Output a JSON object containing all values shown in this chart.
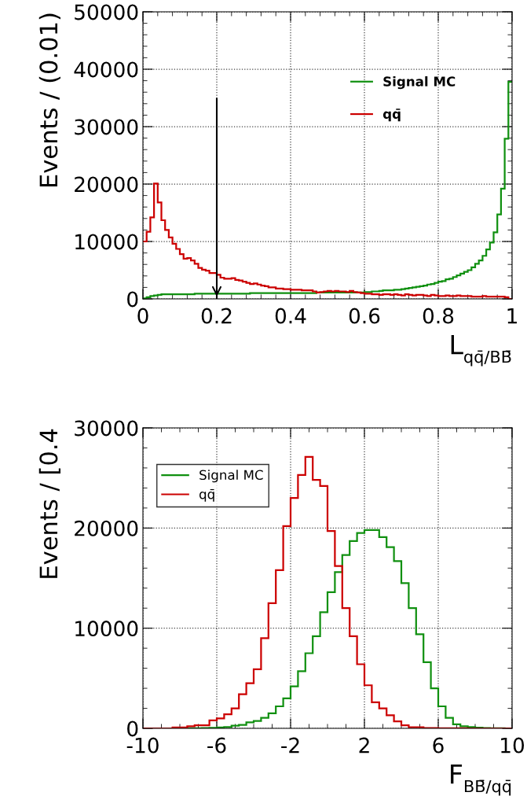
{
  "chart_data": [
    {
      "type": "histogram",
      "ylabel": "Events / (0.01)",
      "xlabel": "L$_{qq̄/BB̄}$",
      "bins": [
        0,
        0.01,
        0.02,
        0.03,
        0.04,
        0.05,
        0.06,
        0.07,
        0.08,
        0.09,
        0.1,
        0.11,
        0.12,
        0.13,
        0.14,
        0.15,
        0.16,
        0.17,
        0.18,
        0.19,
        0.2,
        0.21,
        0.22,
        0.23,
        0.24,
        0.25,
        0.26,
        0.27,
        0.28,
        0.29,
        0.3,
        0.31,
        0.32,
        0.33,
        0.34,
        0.35,
        0.36,
        0.37,
        0.38,
        0.39,
        0.4,
        0.41,
        0.42,
        0.43,
        0.44,
        0.45,
        0.46,
        0.47,
        0.48,
        0.49,
        0.5,
        0.51,
        0.52,
        0.53,
        0.54,
        0.55,
        0.56,
        0.57,
        0.58,
        0.59,
        0.6,
        0.61,
        0.62,
        0.63,
        0.64,
        0.65,
        0.66,
        0.67,
        0.68,
        0.69,
        0.7,
        0.71,
        0.72,
        0.73,
        0.74,
        0.75,
        0.76,
        0.77,
        0.78,
        0.79,
        0.8,
        0.81,
        0.82,
        0.83,
        0.84,
        0.85,
        0.86,
        0.87,
        0.88,
        0.89,
        0.9,
        0.91,
        0.92,
        0.93,
        0.94,
        0.95,
        0.96,
        0.97,
        0.98,
        0.99,
        1
      ],
      "series": [
        {
          "name": "Signal MC",
          "color": "#109010",
          "values": [
            100,
            300,
            500,
            600,
            700,
            800,
            800,
            800,
            800,
            800,
            800,
            800,
            800,
            800,
            900,
            900,
            900,
            900,
            900,
            900,
            900,
            900,
            900,
            900,
            900,
            900,
            900,
            900,
            900,
            1000,
            1000,
            1000,
            1000,
            1000,
            1000,
            1000,
            1000,
            1000,
            1000,
            1000,
            1000,
            1000,
            1000,
            1000,
            1000,
            1000,
            1000,
            1100,
            1100,
            1100,
            1100,
            1100,
            1100,
            1100,
            1100,
            1100,
            1100,
            1100,
            1100,
            1100,
            1200,
            1200,
            1300,
            1300,
            1400,
            1500,
            1500,
            1500,
            1600,
            1600,
            1700,
            1800,
            1900,
            2000,
            2100,
            2200,
            2300,
            2500,
            2600,
            2800,
            3000,
            3100,
            3400,
            3500,
            3800,
            4100,
            4400,
            4700,
            5000,
            5500,
            6100,
            6700,
            7500,
            8600,
            9800,
            11600,
            14700,
            19200,
            27900,
            37800
          ]
        },
        {
          "name": "qq̄",
          "color": "#cc0000",
          "values": [
            10000,
            11700,
            14200,
            20100,
            16800,
            13700,
            12000,
            10700,
            9600,
            8700,
            7800,
            7000,
            7100,
            6700,
            6100,
            5400,
            5100,
            4900,
            4500,
            4500,
            4200,
            3700,
            3500,
            3500,
            3600,
            3300,
            3200,
            3000,
            2800,
            2600,
            2700,
            2500,
            2300,
            2200,
            2000,
            2000,
            1800,
            1800,
            1700,
            1700,
            1600,
            1600,
            1600,
            1500,
            1500,
            1500,
            1300,
            1100,
            1200,
            1300,
            1400,
            1300,
            1400,
            1300,
            1300,
            1200,
            1400,
            1200,
            1100,
            1000,
            900,
            900,
            800,
            800,
            700,
            800,
            800,
            700,
            800,
            700,
            600,
            800,
            700,
            600,
            700,
            700,
            600,
            500,
            700,
            600,
            500,
            500,
            600,
            500,
            500,
            600,
            500,
            500,
            500,
            400,
            400,
            400,
            500,
            400,
            400,
            400,
            400,
            400,
            300,
            0
          ]
        }
      ],
      "xlim": [
        0,
        1
      ],
      "xticks": [
        0,
        0.2,
        0.4,
        0.6,
        0.8,
        1
      ],
      "ylim": [
        0,
        50000
      ],
      "yticks": [
        0,
        10000,
        20000,
        30000,
        40000,
        50000
      ],
      "grid": true,
      "legend": "top right",
      "ref_lines": [
        {
          "axis": "x",
          "value": 0.2
        }
      ]
    },
    {
      "type": "histogram",
      "ylabel": "Events / [0.4",
      "xlabel": "F$_{BB̄/qq̄}$",
      "bins": [
        -10,
        -9.6,
        -9.2,
        -8.8,
        -8.4,
        -8,
        -7.6,
        -7.2,
        -6.8,
        -6.4,
        -6,
        -5.6,
        -5.2,
        -4.8,
        -4.4,
        -4,
        -3.6,
        -3.2,
        -2.8,
        -2.4,
        -2,
        -1.6,
        -1.2,
        -0.8,
        -0.4,
        0,
        0.4,
        0.8,
        1.2,
        1.6,
        2,
        2.4,
        2.8,
        3.2,
        3.6,
        4,
        4.4,
        4.8,
        5.2,
        5.6,
        6,
        6.4,
        6.8,
        7.2,
        7.6,
        8,
        8.4,
        8.8,
        9.2,
        9.6,
        10
      ],
      "series": [
        {
          "name": "Signal MC",
          "color": "#109010",
          "values": [
            0,
            0,
            0,
            0,
            0,
            0,
            10,
            20,
            30,
            50,
            80,
            130,
            260,
            340,
            600,
            730,
            1050,
            1500,
            2200,
            3000,
            4200,
            5700,
            7500,
            9200,
            11600,
            13600,
            15600,
            17300,
            18700,
            19500,
            19800,
            19800,
            19100,
            18100,
            16700,
            14500,
            12000,
            9400,
            6600,
            4000,
            2200,
            1050,
            400,
            200,
            130,
            60,
            40,
            20,
            10,
            0
          ]
        },
        {
          "name": "qq̄",
          "color": "#cc0000",
          "values": [
            0,
            0,
            0,
            0,
            80,
            80,
            200,
            300,
            300,
            800,
            1000,
            1400,
            2000,
            3400,
            4500,
            5900,
            9000,
            12500,
            15800,
            20200,
            23000,
            25300,
            27100,
            24800,
            24200,
            19700,
            16200,
            12000,
            9200,
            6400,
            4300,
            2600,
            2000,
            1300,
            700,
            300,
            100,
            100,
            30,
            30,
            20,
            20,
            10,
            10,
            0,
            0,
            0,
            0,
            0,
            0
          ]
        }
      ],
      "xlim": [
        -10,
        10
      ],
      "xticks": [
        -10,
        -6,
        -2,
        2,
        6,
        10
      ],
      "ylim": [
        0,
        30000
      ],
      "yticks": [
        0,
        10000,
        20000,
        30000
      ],
      "grid": true,
      "legend": "top left"
    }
  ]
}
